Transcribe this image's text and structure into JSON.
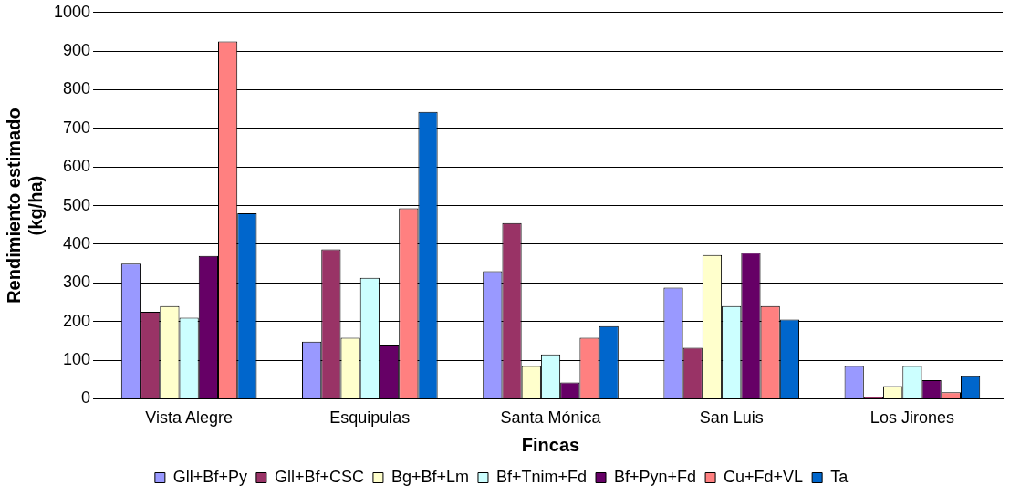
{
  "chart_data": {
    "type": "bar",
    "xlabel": "Fincas",
    "ylabel": "Rendimiento estimado (kg/ha)",
    "categories": [
      "Vista Alegre",
      "Esquipulas",
      "Santa Mónica",
      "San Luis",
      "Los Jirones"
    ],
    "series": [
      {
        "name": "Gll+Bf+Py",
        "color": "#9999ff",
        "values": [
          350,
          148,
          330,
          288,
          85
        ]
      },
      {
        "name": "Gll+Bf+CSC",
        "color": "#993366",
        "values": [
          225,
          387,
          455,
          132,
          5
        ]
      },
      {
        "name": "Bg+Bf+Lm",
        "color": "#ffffcc",
        "values": [
          240,
          158,
          85,
          372,
          33
        ]
      },
      {
        "name": "Bf+Tnim+Fd",
        "color": "#ccffff",
        "values": [
          210,
          313,
          115,
          240,
          85
        ]
      },
      {
        "name": "Bf+Pyn+Fd",
        "color": "#660066",
        "values": [
          370,
          138,
          42,
          378,
          48
        ]
      },
      {
        "name": "Cu+Fd+VL",
        "color": "#ff8080",
        "values": [
          925,
          493,
          158,
          240,
          17
        ]
      },
      {
        "name": "Ta",
        "color": "#0066cc",
        "values": [
          480,
          743,
          188,
          205,
          58
        ]
      }
    ],
    "ylim": [
      0,
      1000
    ],
    "yticks": [
      0,
      100,
      200,
      300,
      400,
      500,
      600,
      700,
      800,
      900,
      1000
    ],
    "grid": "y",
    "legend": "bottom"
  }
}
